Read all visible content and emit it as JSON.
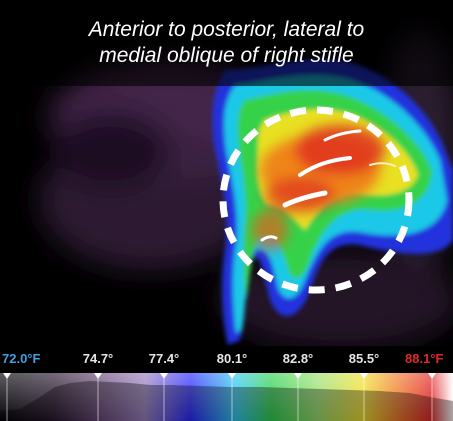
{
  "caption": {
    "line1": "Anterior to posterior, lateral to",
    "line2": "medial oblique of right stifle"
  },
  "temperature_scale": {
    "labels": [
      "72.0°F",
      "74.7°",
      "77.4°",
      "80.1°",
      "82.8°",
      "85.5°",
      "88.1°F"
    ],
    "min_color": "#3da0e0",
    "max_color": "#e02828",
    "mid_color": "#ffffff"
  },
  "colors": {
    "background": "#000000",
    "caption_text": "#ffffff"
  }
}
